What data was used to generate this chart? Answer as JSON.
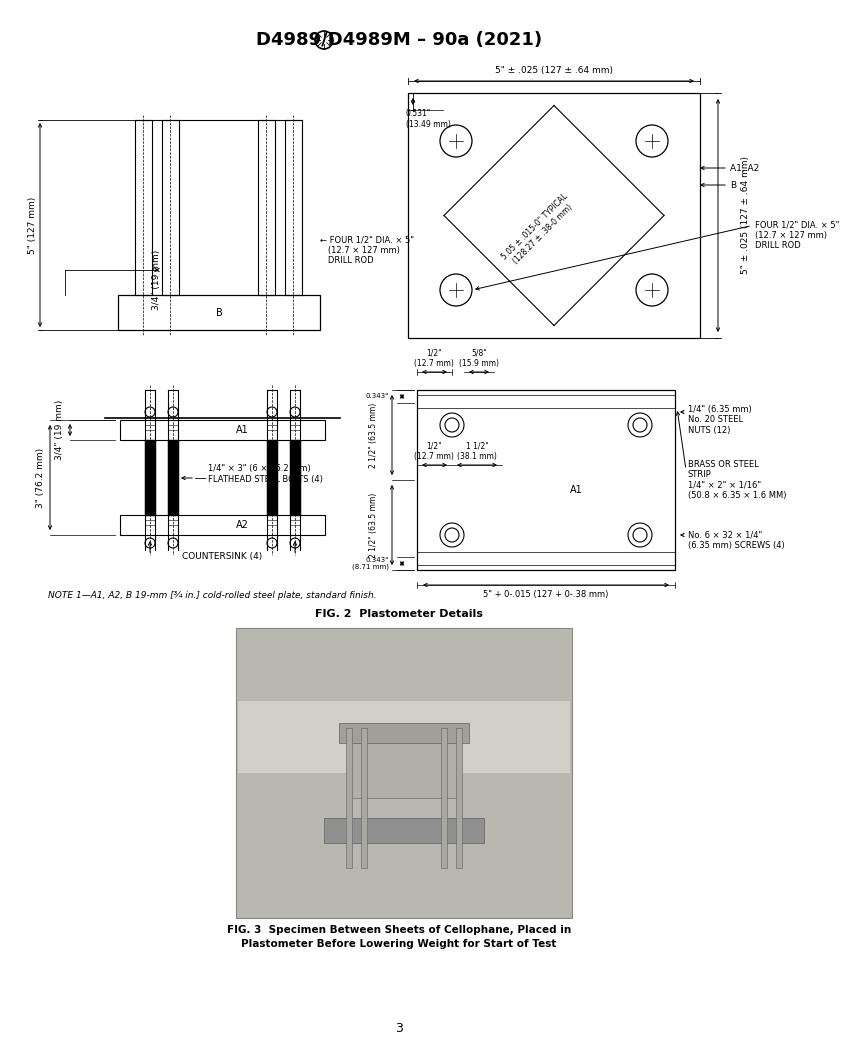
{
  "title": "D4989/D4989M – 90a (2021)",
  "background_color": "#ffffff",
  "page_number": "3",
  "fig2_caption_line1": "FIG. 2  Plastometer Details",
  "fig3_caption_line1": "FIG. 3  Specimen Between Sheets of Cellophane, Placed in",
  "fig3_caption_line2": "Plastometer Before Lowering Weight for Start of Test",
  "note_text": "NOTE 1—A1, A2, B 19-mm [¾ in.] cold-rolled steel plate, standard finish.",
  "top_left_dim1": "5\" (127 mm)",
  "top_left_dim2": "3/4\" (19 mm)",
  "top_right_dim_top": "5\" ± .025 (127 ± .64 mm)",
  "top_right_dim_right": "5\" ± .025 (127 ± .64 mm)",
  "top_right_corner_dim": "0.531\"\n(13.49 mm)",
  "top_right_diag_dim": "5.05 ± .015-0\" TYPICAL\n(128.27 ± .38-0 mm)",
  "top_right_label_a1a2": "A1, A2",
  "top_right_label_b": "B",
  "top_right_drill": "FOUR 1/2\" DIA. × 5\"\n(12.7 × 127 mm)\nDRILL ROD",
  "bot_left_dim1": "3\" (76.2 mm)",
  "bot_left_dim2": "3/4\" (19 mm)",
  "bot_left_bolts": "1/4\" × 3\" (6 × 76.2 mm)\nFLATHEAD STEEL BOLTS (4)",
  "bot_left_countersink": "COUNTERSINK (4)",
  "bot_right_dim_horiz1": "1/2\"\n(12.7 mm)",
  "bot_right_dim_horiz2": "5/8\"\n(15.9 mm)",
  "bot_right_dim_horiz3": "1/2\"\n(12.7 mm)",
  "bot_right_dim_horiz4": "1 1/2\"\n(38.1 mm)",
  "bot_right_dim_vert1": "2 1/2\" (63.5 mm)",
  "bot_right_dim_vert2": "2 1/2\" (63.5 mm)",
  "bot_right_dim_small1": "0.343\"",
  "bot_right_dim_small2": "0.343\"\n(8.71 mm)",
  "bot_right_dim_bot": "5\" + 0-.015 (127 + 0-.38 mm)",
  "bot_right_label_a1": "A1",
  "bot_right_nut": "1/4\" (6.35 mm)\nNo. 20 STEEL\nNUTS (12)",
  "bot_right_strip": "BRASS OR STEEL\nSTRIP\n1/4\" × 2\" × 1/16\"\n(50.8 × 6.35 × 1.6 MM)",
  "bot_right_screws": "No. 6 × 32 × 1/4\"\n(6.35 mm) SCREWS (4)"
}
